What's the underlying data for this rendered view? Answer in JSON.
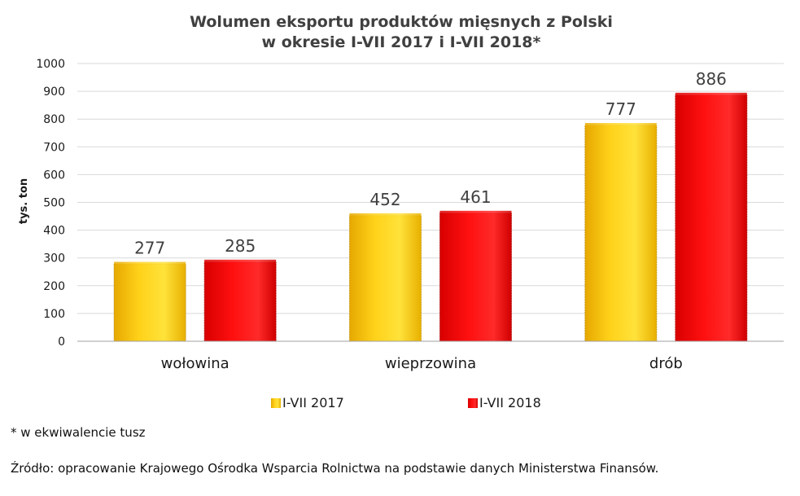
{
  "chart_data": {
    "type": "bar",
    "title_lines": [
      "Wolumen eksportu produktów mięsnych  z Polski",
      "w okresie I-VII 2017 i I-VII 2018*"
    ],
    "ylabel": "tys. ton",
    "xlabel": "",
    "ylim": [
      0,
      1000
    ],
    "yticks": [
      0,
      100,
      200,
      300,
      400,
      500,
      600,
      700,
      800,
      900,
      1000
    ],
    "categories": [
      "wołowina",
      "wieprzowina",
      "drób"
    ],
    "series": [
      {
        "name": "I-VII 2017",
        "values": [
          277,
          452,
          777
        ],
        "color": "#FFCC00"
      },
      {
        "name": "I-VII 2018",
        "values": [
          285,
          461,
          886
        ],
        "color": "#FF0000"
      }
    ],
    "grid": true,
    "legend_position": "bottom"
  },
  "footnote": "* w ekwiwalencie tusz",
  "source": "Źródło: opracowanie Krajowego Ośrodka Wsparcia Rolnictwa na podstawie danych Ministerstwa Finansów."
}
